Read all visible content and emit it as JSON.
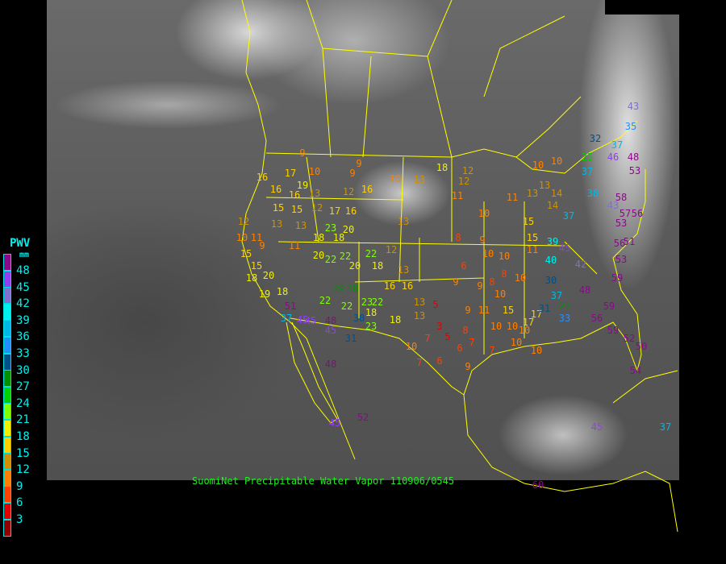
{
  "caption": "SuomiNet Precipitable Water Vapor  110906/0545",
  "legend": {
    "title": "PWV",
    "unit": "mm",
    "labels": [
      "48",
      "45",
      "42",
      "39",
      "36",
      "33",
      "30",
      "27",
      "24",
      "21",
      "18",
      "15",
      "12",
      "9",
      "6",
      "3"
    ],
    "colors": [
      "#8a0a8a",
      "#9040f0",
      "#8070d0",
      "#00f0f0",
      "#00b8e8",
      "#2090ff",
      "#00508a",
      "#009000",
      "#00d000",
      "#80ff00",
      "#f0f000",
      "#ffd000",
      "#d09000",
      "#ff8000",
      "#ff4000",
      "#e00000",
      "#900000"
    ]
  },
  "map_colors": {
    "borders": "#ffff00",
    "background": "#000000",
    "caption": "#22ee22"
  },
  "stations": [
    16,
    16,
    12,
    10,
    11,
    15,
    9,
    15,
    18,
    20,
    19,
    18,
    51,
    37,
    45,
    45,
    48,
    45,
    30,
    31,
    48,
    52,
    45,
    9,
    17,
    10,
    19,
    16,
    13,
    15,
    15,
    12,
    17,
    16,
    12,
    16,
    9,
    9,
    10,
    13,
    18,
    12,
    11,
    12,
    13,
    13,
    18,
    18,
    23,
    20,
    11,
    20,
    22,
    22,
    22,
    12,
    18,
    20,
    29,
    28,
    22,
    22,
    23,
    22,
    18,
    23,
    18,
    16,
    16,
    13,
    13,
    13,
    13,
    10,
    5,
    3,
    5,
    7,
    6,
    6,
    7,
    8,
    7,
    7,
    9,
    9,
    6,
    9,
    8,
    10,
    11,
    10,
    10,
    15,
    10,
    10,
    10,
    9,
    8,
    11,
    8,
    10,
    10,
    17,
    17,
    10,
    9,
    10,
    11,
    15,
    15,
    10,
    13,
    14,
    14,
    13,
    10,
    32,
    35,
    25,
    37,
    46,
    37,
    48,
    53,
    38,
    43,
    58,
    57,
    53,
    56,
    37,
    39,
    45,
    40,
    42,
    56,
    53,
    51,
    59,
    48,
    30,
    37,
    31,
    27,
    33,
    56,
    59,
    59,
    52,
    50,
    54,
    43,
    37,
    45,
    60
  ]
}
